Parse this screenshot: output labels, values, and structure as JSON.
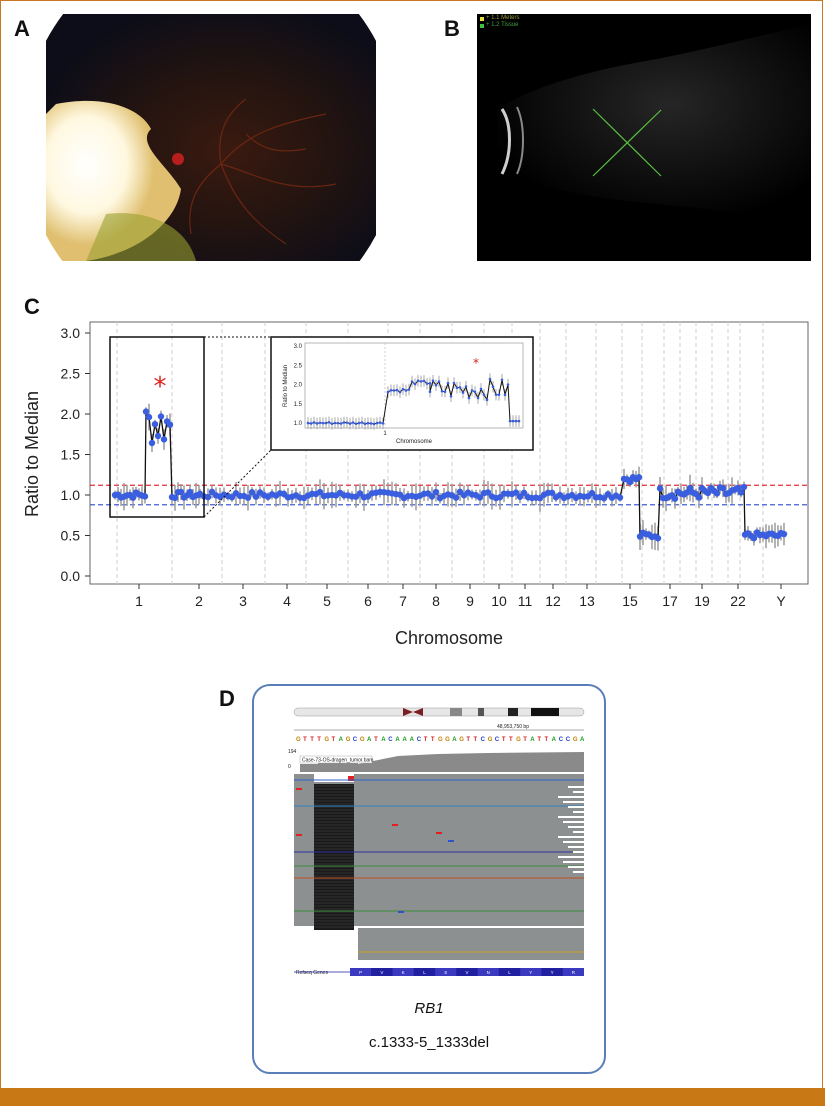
{
  "panels": {
    "a_label": "A",
    "b_label": "B",
    "c_label": "C",
    "d_label": "D"
  },
  "ultrasound": {
    "overlay_line1": "+ 1.1 Meters",
    "overlay_line2": "+ 1.2 Tissue"
  },
  "chart_data": {
    "type": "scatter",
    "xlabel": "Chromosome",
    "ylabel": "Ratio to Median",
    "ylim": [
      0,
      3
    ],
    "yticks": [
      "0.0",
      "0.5",
      "1.0",
      "1.5",
      "2.0",
      "2.5",
      "3.0"
    ],
    "xtick_labels": [
      "1",
      "2",
      "3",
      "4",
      "5",
      "6",
      "7",
      "8",
      "9",
      "10",
      "11",
      "12",
      "13",
      "15",
      "17",
      "19",
      "22",
      "Y"
    ],
    "thresholds": {
      "upper": 1.12,
      "lower": 0.88,
      "upper_color": "#e0303a",
      "lower_color": "#4060d0"
    },
    "segments": [
      {
        "chromosome": "1p",
        "ratio": 1.0
      },
      {
        "chromosome": "1q",
        "ratio": 1.9
      },
      {
        "chromosome": "2",
        "ratio": 1.0
      },
      {
        "chromosome": "3-14",
        "ratio": 1.0
      },
      {
        "chromosome": "15",
        "ratio": 1.2
      },
      {
        "chromosome": "16",
        "ratio": 0.5
      },
      {
        "chromosome": "17-22",
        "ratio": 1.05
      },
      {
        "chromosome": "Y",
        "ratio": 0.5
      }
    ],
    "annotation": "*",
    "inset": {
      "xlabel": "Chromosome",
      "ylabel": "Ratio to Median",
      "yticks": [
        "1.0",
        "1.5",
        "2.0",
        "2.5",
        "3.0"
      ],
      "xtick_labels": [
        "1"
      ]
    },
    "colors": {
      "points": "#3a5ee0",
      "line": "#111111",
      "errors": "#9a9a9a",
      "star": "#e02020"
    }
  },
  "igv": {
    "position_label": "48,953,750 bp",
    "sequence": "GTTTGTAGCGATACAAACTTGGAGTTCGCTTGTATTACCGA",
    "track_name": "Case-73-OS-dragen_tumor.bam",
    "scale_top": "194",
    "scale_bottom": "0",
    "gene_track": "Refseq Genes",
    "amino_acids": [
      "P",
      "V",
      "K",
      "L",
      "S",
      "V",
      "N",
      "L",
      "Y",
      "Y",
      "R"
    ]
  },
  "caption": {
    "gene": "RB1",
    "variant": "c.1333-5_1333del"
  }
}
